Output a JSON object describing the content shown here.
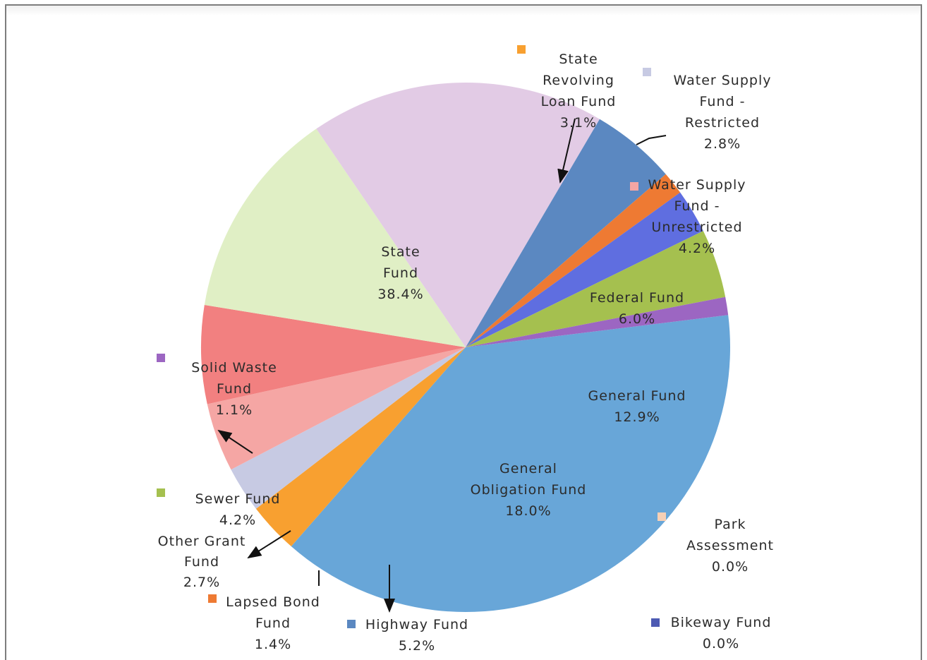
{
  "chart_data": {
    "type": "pie",
    "title": "",
    "slices": [
      {
        "key": "state",
        "name": "State Fund",
        "value": 38.4,
        "color": "#68a6d8"
      },
      {
        "key": "srlf",
        "name": "State Revolving Loan Fund",
        "value": 3.1,
        "color": "#f8a030"
      },
      {
        "key": "wsr",
        "name": "Water Supply Fund - Restricted",
        "value": 2.8,
        "color": "#c7cae3"
      },
      {
        "key": "wsu",
        "name": "Water Supply Fund - Unrestricted",
        "value": 4.2,
        "color": "#f5a6a4"
      },
      {
        "key": "fed",
        "name": "Federal Fund",
        "value": 6.0,
        "color": "#f28080"
      },
      {
        "key": "gen",
        "name": "General Fund",
        "value": 12.9,
        "color": "#e0efc5"
      },
      {
        "key": "park",
        "name": "Park Assessment",
        "value": 0.0,
        "color": "#f7d0b5"
      },
      {
        "key": "bike",
        "name": "Bikeway Fund",
        "value": 0.0,
        "color": "#4d5ab3"
      },
      {
        "key": "go",
        "name": "General Obligation Fund",
        "value": 18.0,
        "color": "#e2cbe5"
      },
      {
        "key": "hwy",
        "name": "Highway Fund",
        "value": 5.2,
        "color": "#5b88c1"
      },
      {
        "key": "lapsed",
        "name": "Lapsed Bond Fund",
        "value": 1.4,
        "color": "#ee7a33"
      },
      {
        "key": "other",
        "name": "Other Grant Fund",
        "value": 2.7,
        "color": "#5f6ee0"
      },
      {
        "key": "sewer",
        "name": "Sewer Fund",
        "value": 4.2,
        "color": "#a5c04f"
      },
      {
        "key": "solid",
        "name": "Solid Waste Fund",
        "value": 1.1,
        "color": "#9c66c2"
      }
    ]
  },
  "labels": {
    "state": [
      "State",
      "Fund",
      "38.4%"
    ],
    "srlf": [
      "State",
      "Revolving",
      "Loan Fund",
      "3.1%"
    ],
    "wsr": [
      "Water Supply",
      "Fund -",
      "Restricted",
      "2.8%"
    ],
    "wsu": [
      "Water Supply",
      "Fund -",
      "Unrestricted",
      "4.2%"
    ],
    "fed": [
      "Federal Fund",
      "6.0%"
    ],
    "gen": [
      "General Fund",
      "12.9%"
    ],
    "go": [
      "General",
      "Obligation Fund",
      "18.0%"
    ],
    "park": [
      "Park",
      "Assessment",
      "0.0%"
    ],
    "bike": [
      "Bikeway Fund",
      "0.0%"
    ],
    "hwy": [
      "Highway Fund",
      "5.2%"
    ],
    "lapsed": [
      "Lapsed Bond",
      "Fund",
      "1.4%"
    ],
    "other": [
      "Other Grant",
      "Fund",
      "2.7%"
    ],
    "sewer": [
      "Sewer  Fund",
      "4.2%"
    ],
    "solid": [
      "Solid Waste",
      "Fund",
      "1.1%"
    ]
  }
}
